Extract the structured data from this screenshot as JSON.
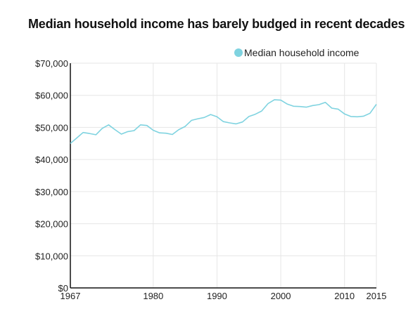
{
  "chart_data": {
    "type": "line",
    "title": "Median household income has barely budged in recent decades",
    "xlabel": "",
    "ylabel": "",
    "xlim": [
      1967,
      2015
    ],
    "ylim": [
      0,
      70000
    ],
    "x_ticks": [
      1967,
      1980,
      1990,
      2000,
      2010,
      2015
    ],
    "x_tick_labels": [
      "1967",
      "1980",
      "1990",
      "2000",
      "2010",
      "2015"
    ],
    "y_ticks": [
      0,
      10000,
      20000,
      30000,
      40000,
      50000,
      60000,
      70000
    ],
    "y_tick_labels": [
      "$0",
      "$10,000",
      "$20,000",
      "$30,000",
      "$40,000",
      "$50,000",
      "$60,000",
      "$70,000"
    ],
    "grid": true,
    "legend_position": "top-right",
    "series": [
      {
        "name": "Median household income",
        "color": "#7fd3e0",
        "x": [
          1967,
          1968,
          1969,
          1970,
          1971,
          1972,
          1973,
          1974,
          1975,
          1976,
          1977,
          1978,
          1979,
          1980,
          1981,
          1982,
          1983,
          1984,
          1985,
          1986,
          1987,
          1988,
          1989,
          1990,
          1991,
          1992,
          1993,
          1994,
          1995,
          1996,
          1997,
          1998,
          1999,
          2000,
          2001,
          2002,
          2003,
          2004,
          2005,
          2006,
          2007,
          2008,
          2009,
          2010,
          2011,
          2012,
          2013,
          2014,
          2015
        ],
        "values": [
          45000,
          46700,
          48400,
          48100,
          47700,
          49700,
          50800,
          49300,
          47900,
          48700,
          49000,
          50800,
          50600,
          49100,
          48300,
          48200,
          47800,
          49300,
          50300,
          52200,
          52700,
          53100,
          54000,
          53300,
          51800,
          51400,
          51100,
          51700,
          53400,
          54100,
          55100,
          57400,
          58600,
          58500,
          57300,
          56600,
          56500,
          56300,
          56800,
          57100,
          57800,
          56000,
          55700,
          54200,
          53400,
          53300,
          53500,
          54400,
          57200
        ]
      }
    ]
  }
}
